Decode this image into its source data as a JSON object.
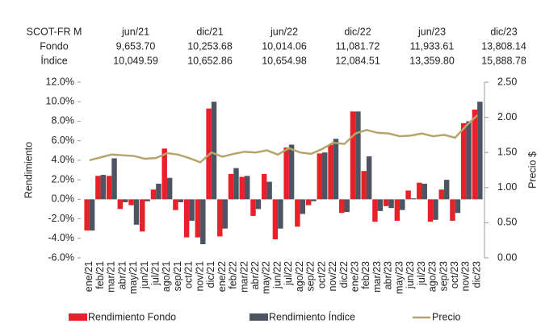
{
  "table": {
    "header": "SCOT-FR M",
    "row_labels": [
      "Fondo",
      "Índice"
    ],
    "columns": [
      "jun/21",
      "dic/21",
      "jun/22",
      "dic/22",
      "jun/23",
      "dic/23"
    ],
    "rows": [
      [
        "9,653.70",
        "10,253.68",
        "10,014.06",
        "11,081.72",
        "11,933.61",
        "13,808.14"
      ],
      [
        "10,049.59",
        "10,652.86",
        "10,654.98",
        "12,084.51",
        "13,359.80",
        "15,888.78"
      ]
    ]
  },
  "chart_data": {
    "type": "bar_line",
    "y_label": "Rendimiento",
    "y2_label": "Precio $",
    "categories": [
      "ene/21",
      "feb/21",
      "mar/21",
      "abr/21",
      "may/21",
      "jun/21",
      "jul/21",
      "ago/21",
      "sep/21",
      "oct/21",
      "nov/21",
      "dic/21",
      "ene/22",
      "feb/22",
      "mar/22",
      "abr/22",
      "may/22",
      "jun/22",
      "jul/22",
      "ago/22",
      "sep/22",
      "oct/22",
      "nov/22",
      "dic/22",
      "ene/23",
      "feb/23",
      "mar/23",
      "abr/23",
      "may/23",
      "jun/23",
      "jul/23",
      "ago/23",
      "sep/23",
      "oct/23",
      "nov/23",
      "dic/23"
    ],
    "series": [
      {
        "name": "Rendimiento Fondo",
        "color": "#e8202a",
        "type": "bar",
        "values": [
          -3.2,
          2.4,
          2.4,
          -1.0,
          -0.6,
          -3.3,
          1.0,
          5.2,
          -1.1,
          -3.9,
          -3.9,
          9.3,
          -3.8,
          2.6,
          2.3,
          -1.7,
          2.6,
          -4.1,
          5.3,
          -2.8,
          -0.6,
          4.7,
          5.6,
          -1.4,
          9.0,
          2.9,
          -2.3,
          -0.7,
          -2.2,
          0.9,
          1.7,
          -2.3,
          1.0,
          -2.2,
          7.8,
          9.2
        ]
      },
      {
        "name": "Rendimiento Índice",
        "color": "#4d5562",
        "type": "bar",
        "values": [
          -3.2,
          2.5,
          4.2,
          -0.3,
          -2.6,
          -0.2,
          1.6,
          2.2,
          -0.3,
          -2.2,
          -4.6,
          10.0,
          -3.0,
          3.2,
          2.4,
          -1.0,
          1.8,
          -3.0,
          5.6,
          -1.5,
          -0.2,
          4.8,
          6.2,
          -1.3,
          9.0,
          4.4,
          -1.2,
          -0.9,
          -1.1,
          0.1,
          1.6,
          -2.1,
          2.0,
          -1.4,
          8.0,
          10.0
        ]
      },
      {
        "name": "Precio",
        "color": "#b5a56a",
        "type": "line",
        "axis": "y2",
        "values": [
          1.39,
          1.43,
          1.47,
          1.46,
          1.45,
          1.41,
          1.42,
          1.49,
          1.47,
          1.42,
          1.36,
          1.5,
          1.44,
          1.48,
          1.51,
          1.5,
          1.53,
          1.47,
          1.56,
          1.5,
          1.48,
          1.55,
          1.64,
          1.62,
          1.77,
          1.82,
          1.78,
          1.77,
          1.73,
          1.74,
          1.77,
          1.73,
          1.75,
          1.71,
          1.88,
          2.03
        ]
      }
    ],
    "ylim": [
      -6,
      12
    ],
    "yticks": [
      {
        "value": -6,
        "label": "-6.0%"
      },
      {
        "value": -4,
        "label": "-4.0%"
      },
      {
        "value": -2,
        "label": "-2.0%"
      },
      {
        "value": 0,
        "label": "0.0%"
      },
      {
        "value": 2,
        "label": "2.0%"
      },
      {
        "value": 4,
        "label": "4.0%"
      },
      {
        "value": 6,
        "label": "6.0%"
      },
      {
        "value": 8,
        "label": "8.0%"
      },
      {
        "value": 10,
        "label": "10.0%"
      },
      {
        "value": 12,
        "label": "12.0%"
      }
    ],
    "y2lim": [
      0,
      2.5
    ],
    "y2ticks": [
      {
        "value": 0,
        "label": "0.00"
      },
      {
        "value": 0.5,
        "label": "0.50"
      },
      {
        "value": 1,
        "label": "1.00"
      },
      {
        "value": 1.5,
        "label": "1.50"
      },
      {
        "value": 2,
        "label": "2.00"
      },
      {
        "value": 2.5,
        "label": "2.50"
      }
    ],
    "legend": "bottom"
  }
}
